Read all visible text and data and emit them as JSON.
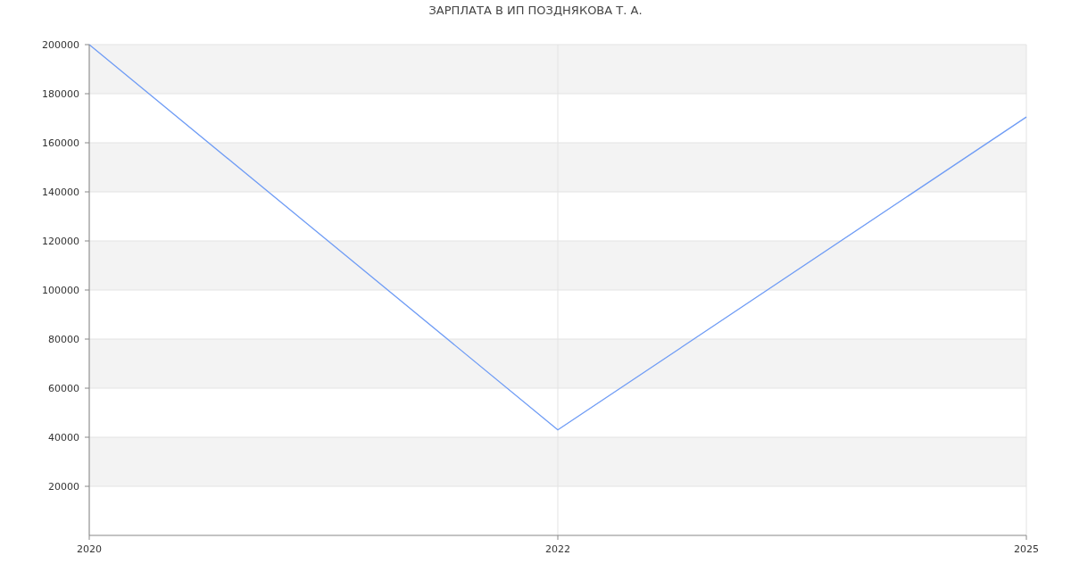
{
  "chart_data": {
    "type": "line",
    "title": "ЗАРПЛАТА В ИП ПОЗДНЯКОВА Т. А.",
    "categories": [
      "2020",
      "2022",
      "2025"
    ],
    "series": [
      {
        "color": "#6f9cf5",
        "values": [
          200000,
          43000,
          170500
        ]
      }
    ],
    "ylim": [
      0,
      200000
    ],
    "yticks": [
      20000,
      40000,
      60000,
      80000,
      100000,
      120000,
      140000,
      160000,
      180000,
      200000
    ],
    "grid": true
  }
}
